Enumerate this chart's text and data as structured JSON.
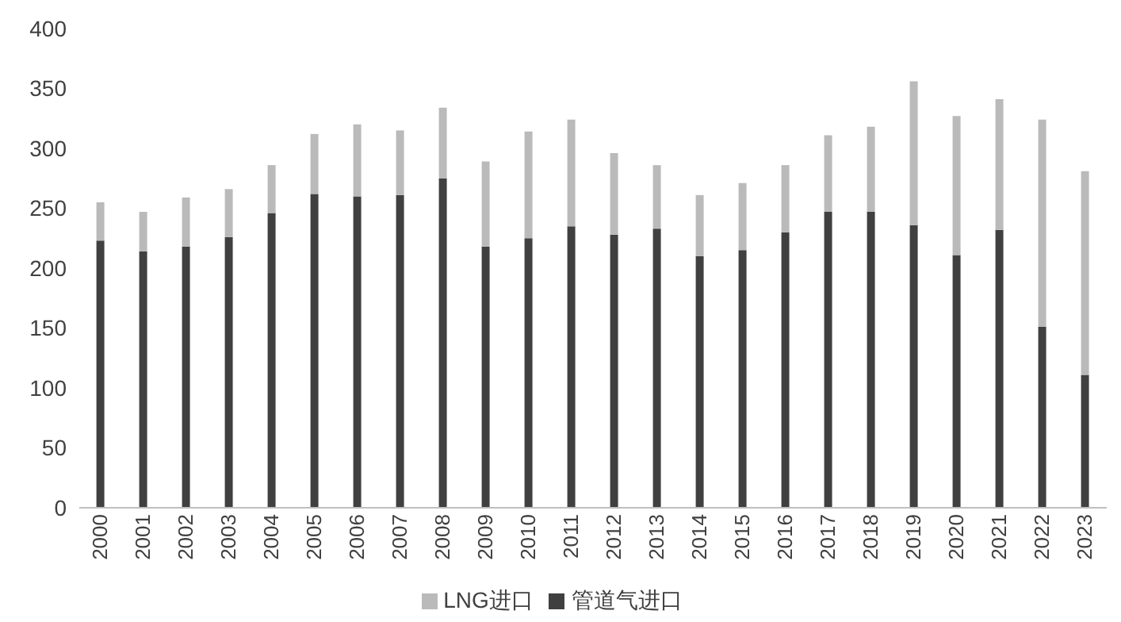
{
  "chart_data": {
    "type": "bar",
    "stacked": true,
    "categories": [
      "2000",
      "2001",
      "2002",
      "2003",
      "2004",
      "2005",
      "2006",
      "2007",
      "2008",
      "2009",
      "2010",
      "2011",
      "2012",
      "2013",
      "2014",
      "2015",
      "2016",
      "2017",
      "2018",
      "2019",
      "2020",
      "2021",
      "2022",
      "2023"
    ],
    "series": [
      {
        "name": "管道气进口",
        "color": "#404040",
        "values": [
          223,
          214,
          218,
          226,
          246,
          262,
          260,
          261,
          275,
          218,
          225,
          235,
          228,
          233,
          210,
          215,
          230,
          247,
          247,
          236,
          211,
          232,
          151,
          111
        ]
      },
      {
        "name": "LNG进口",
        "color": "#bababa",
        "values": [
          32,
          33,
          41,
          40,
          40,
          50,
          60,
          54,
          59,
          71,
          89,
          89,
          68,
          53,
          51,
          56,
          56,
          64,
          71,
          120,
          116,
          109,
          173,
          170
        ]
      }
    ],
    "ylim": [
      0,
      400
    ],
    "yticks": [
      0,
      50,
      100,
      150,
      200,
      250,
      300,
      350,
      400
    ],
    "grid": false,
    "legend": "bottom"
  }
}
